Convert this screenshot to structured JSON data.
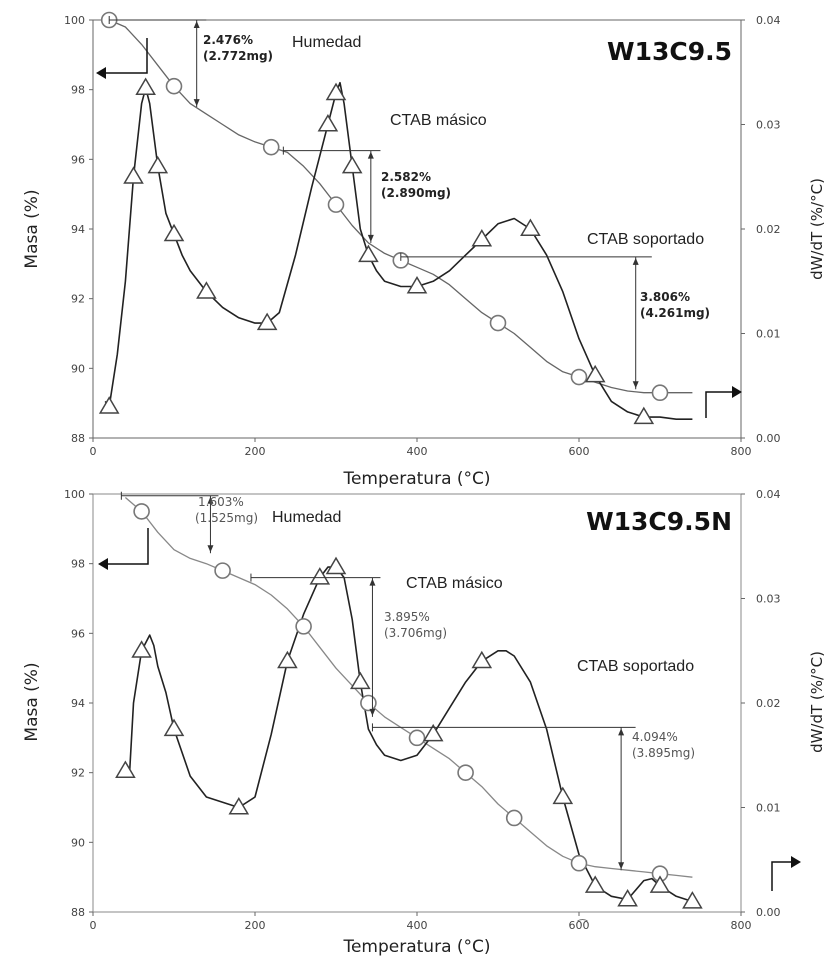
{
  "chart_data": [
    {
      "type": "line",
      "title": "W13C9.5",
      "xlabel": "Temperatura (°C)",
      "ylabel": "Masa (%)",
      "y2label": "dW/dT (%/°C)",
      "xlim": [
        0,
        800
      ],
      "ylim": [
        88,
        100
      ],
      "y2lim": [
        0,
        0.04
      ],
      "x_ticks": [
        "0",
        "200",
        "400",
        "600",
        "800"
      ],
      "y_ticks": [
        "88",
        "90",
        "92",
        "94",
        "96",
        "98",
        "100"
      ],
      "y2_ticks": [
        "0.00",
        "0.01",
        "0.02",
        "0.03",
        "0.04"
      ],
      "grid": false,
      "series": [
        {
          "axis": "left",
          "marker": "circle",
          "x": [
            20,
            40,
            60,
            80,
            100,
            120,
            140,
            160,
            180,
            200,
            220,
            240,
            260,
            280,
            300,
            320,
            340,
            360,
            380,
            400,
            420,
            440,
            460,
            480,
            500,
            520,
            540,
            560,
            580,
            600,
            620,
            640,
            660,
            680,
            700,
            720,
            740
          ],
          "y": [
            100.0,
            99.8,
            99.3,
            98.7,
            98.1,
            97.6,
            97.3,
            97.0,
            96.7,
            96.5,
            96.35,
            96.2,
            95.8,
            95.3,
            94.7,
            94.1,
            93.6,
            93.3,
            93.1,
            92.9,
            92.7,
            92.4,
            92.0,
            91.6,
            91.3,
            91.0,
            90.6,
            90.2,
            89.9,
            89.75,
            89.6,
            89.45,
            89.35,
            89.3,
            89.3,
            89.3,
            89.3
          ]
        },
        {
          "axis": "right",
          "marker": "triangle",
          "x": [
            15,
            20,
            30,
            40,
            50,
            60,
            65,
            70,
            80,
            90,
            100,
            110,
            120,
            140,
            160,
            180,
            200,
            215,
            230,
            250,
            270,
            290,
            300,
            305,
            310,
            320,
            330,
            340,
            350,
            360,
            380,
            400,
            420,
            440,
            460,
            480,
            500,
            520,
            540,
            560,
            580,
            600,
            620,
            640,
            660,
            680,
            700,
            720,
            740
          ],
          "y": [
            0.0035,
            0.003,
            0.008,
            0.015,
            0.025,
            0.032,
            0.0335,
            0.032,
            0.026,
            0.0215,
            0.0195,
            0.0175,
            0.016,
            0.014,
            0.0125,
            0.0115,
            0.011,
            0.011,
            0.012,
            0.0175,
            0.024,
            0.03,
            0.033,
            0.034,
            0.032,
            0.026,
            0.02,
            0.0175,
            0.016,
            0.015,
            0.0145,
            0.0145,
            0.015,
            0.016,
            0.0175,
            0.019,
            0.0205,
            0.021,
            0.02,
            0.0175,
            0.014,
            0.0095,
            0.006,
            0.0035,
            0.0025,
            0.002,
            0.002,
            0.0018,
            0.0018
          ]
        }
      ],
      "annotations": {
        "humedad": {
          "label": "Humedad",
          "pct": "2.476%",
          "mg": "(2.772mg)"
        },
        "masico": {
          "label": "CTAB másico",
          "pct": "2.582%",
          "mg": "(2.890mg)"
        },
        "soportado": {
          "label": "CTAB soportado",
          "pct": "3.806%",
          "mg": "(4.261mg)"
        }
      }
    },
    {
      "type": "line",
      "title": "W13C9.5N",
      "xlabel": "Temperatura (°C)",
      "ylabel": "Masa (%)",
      "y2label": "dW/dT (%/°C)",
      "xlim": [
        0,
        800
      ],
      "ylim": [
        88,
        100
      ],
      "y2lim": [
        0,
        0.04
      ],
      "x_ticks": [
        "0",
        "200",
        "400",
        "60͡0",
        "800"
      ],
      "y_ticks": [
        "88",
        "90",
        "92",
        "94",
        "96",
        "98",
        "100"
      ],
      "y2_ticks": [
        "0.00",
        "0.01",
        "0.02",
        "0.03",
        "0.04"
      ],
      "grid": false,
      "series": [
        {
          "axis": "left",
          "marker": "circle",
          "x": [
            40,
            60,
            80,
            100,
            120,
            140,
            160,
            180,
            200,
            220,
            240,
            260,
            280,
            300,
            320,
            340,
            360,
            380,
            400,
            420,
            440,
            460,
            480,
            500,
            520,
            540,
            560,
            580,
            600,
            620,
            640,
            660,
            680,
            700,
            720,
            740
          ],
          "y": [
            99.9,
            99.5,
            98.9,
            98.4,
            98.15,
            98.0,
            97.8,
            97.6,
            97.4,
            97.1,
            96.7,
            96.2,
            95.6,
            95.0,
            94.5,
            94.0,
            93.6,
            93.3,
            93.0,
            92.7,
            92.4,
            92.0,
            91.6,
            91.1,
            90.7,
            90.3,
            89.9,
            89.6,
            89.4,
            89.3,
            89.25,
            89.2,
            89.15,
            89.1,
            89.05,
            89.0
          ]
        },
        {
          "axis": "right",
          "marker": "triangle",
          "x": [
            40,
            45,
            50,
            60,
            70,
            75,
            80,
            90,
            100,
            120,
            140,
            160,
            180,
            200,
            220,
            240,
            260,
            280,
            290,
            300,
            310,
            320,
            330,
            340,
            350,
            360,
            380,
            400,
            420,
            440,
            460,
            480,
            500,
            510,
            520,
            540,
            560,
            580,
            600,
            620,
            640,
            660,
            680,
            690,
            700,
            720,
            740
          ],
          "y": [
            0.0135,
            0.013,
            0.02,
            0.025,
            0.0265,
            0.0255,
            0.0235,
            0.021,
            0.0175,
            0.013,
            0.011,
            0.0105,
            0.01,
            0.011,
            0.017,
            0.024,
            0.0285,
            0.032,
            0.033,
            0.033,
            0.032,
            0.028,
            0.022,
            0.0175,
            0.016,
            0.015,
            0.0145,
            0.015,
            0.017,
            0.0195,
            0.022,
            0.024,
            0.025,
            0.025,
            0.0245,
            0.022,
            0.0175,
            0.011,
            0.0055,
            0.0025,
            0.0015,
            0.0012,
            0.003,
            0.0032,
            0.0025,
            0.0015,
            0.001
          ]
        }
      ],
      "annotations": {
        "humedad": {
          "label": "Humedad",
          "pct": "1.603%",
          "mg": "(1.525mg)"
        },
        "masico": {
          "label": "CTAB másico",
          "pct": "3.895%",
          "mg": "(3.706mg)"
        },
        "soportado": {
          "label": "CTAB soportado",
          "pct": "4.094%",
          "mg": "(3.895mg)"
        }
      }
    }
  ]
}
